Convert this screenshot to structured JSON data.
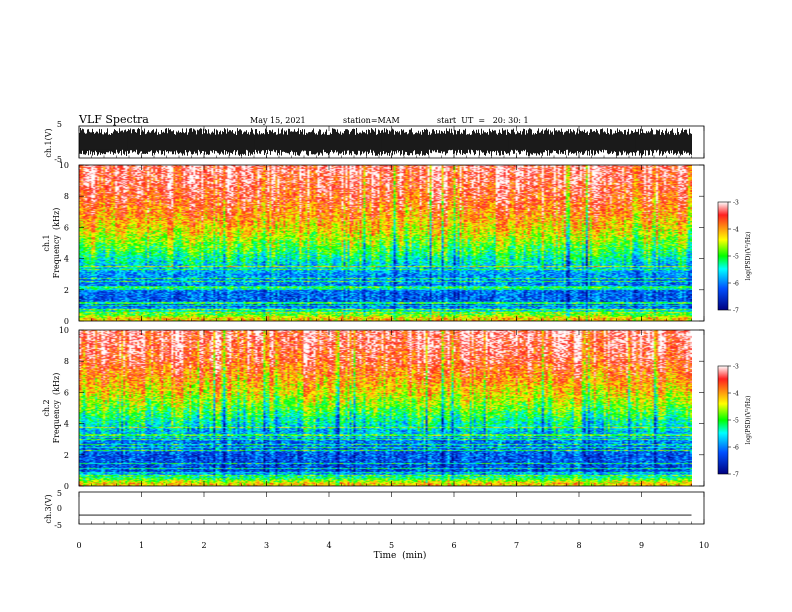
{
  "header": {
    "title": "VLF Spectra",
    "date": "May 15, 2021",
    "station": "station=MAM",
    "start": "start  UT  =   20: 30: 1"
  },
  "panels": {
    "ch1_wave_label": "ch.1(V)",
    "ch1_spec_label": "ch.1",
    "ch2_spec_label": "ch.2",
    "freq_label": "Frequency  (kHz)",
    "ch3_wave_label": "ch.3(V)"
  },
  "colorbar": {
    "label": "log(PSD)(V²/Hz)",
    "ticks": [
      "-3",
      "-4",
      "-5",
      "-6",
      "-7"
    ],
    "colors": [
      "#ffffff",
      "#ff2020",
      "#ffff00",
      "#00ff00",
      "#00ffff",
      "#0050ff",
      "#000080"
    ]
  },
  "chart_data": [
    {
      "type": "line",
      "name": "ch1_waveform",
      "ylabel": "ch.1(V)",
      "ylim": [
        -5,
        5
      ],
      "yticks": [
        "5",
        "-5"
      ],
      "xlim": [
        0,
        10
      ],
      "description_level": "dense noise spanning roughly -5 to 5 V"
    },
    {
      "type": "heatmap",
      "name": "ch1_spectrogram",
      "ylabel": "Frequency  (kHz)",
      "ylim": [
        0,
        10
      ],
      "yticks": [
        "0",
        "2",
        "4",
        "6",
        "8",
        "10"
      ],
      "xlim": [
        0,
        9.8
      ],
      "colorbar_range": [
        -7,
        -3
      ],
      "log_psd_by_freq": [
        {
          "freq_khz": 0.2,
          "log_psd": -4.2
        },
        {
          "freq_khz": 1,
          "log_psd": -6.2
        },
        {
          "freq_khz": 2,
          "log_psd": -6.1
        },
        {
          "freq_khz": 3,
          "log_psd": -5.9
        },
        {
          "freq_khz": 4,
          "log_psd": -5.3
        },
        {
          "freq_khz": 5,
          "log_psd": -4.7
        },
        {
          "freq_khz": 6,
          "log_psd": -4.2
        },
        {
          "freq_khz": 7,
          "log_psd": -3.8
        },
        {
          "freq_khz": 8,
          "log_psd": -3.5
        },
        {
          "freq_khz": 9,
          "log_psd": -3.3
        },
        {
          "freq_khz": 10,
          "log_psd": -3.2
        }
      ]
    },
    {
      "type": "heatmap",
      "name": "ch2_spectrogram",
      "ylabel": "Frequency  (kHz)",
      "ylim": [
        0,
        10
      ],
      "yticks": [
        "0",
        "2",
        "4",
        "6",
        "8",
        "10"
      ],
      "xlim": [
        0,
        9.8
      ],
      "colorbar_range": [
        -7,
        -3
      ],
      "log_psd_by_freq": [
        {
          "freq_khz": 0.2,
          "log_psd": -4.2
        },
        {
          "freq_khz": 1,
          "log_psd": -6.3
        },
        {
          "freq_khz": 2,
          "log_psd": -6.2
        },
        {
          "freq_khz": 3,
          "log_psd": -6.0
        },
        {
          "freq_khz": 4,
          "log_psd": -5.4
        },
        {
          "freq_khz": 5,
          "log_psd": -4.8
        },
        {
          "freq_khz": 6,
          "log_psd": -4.3
        },
        {
          "freq_khz": 7,
          "log_psd": -3.9
        },
        {
          "freq_khz": 8,
          "log_psd": -3.5
        },
        {
          "freq_khz": 9,
          "log_psd": -3.3
        },
        {
          "freq_khz": 10,
          "log_psd": -3.2
        }
      ]
    },
    {
      "type": "line",
      "name": "ch3_waveform",
      "ylabel": "ch.3(V)",
      "ylim": [
        -5,
        5
      ],
      "yticks": [
        "5",
        "0",
        "-5"
      ],
      "xlim": [
        0,
        9.8
      ],
      "y_constant": -2.2
    }
  ],
  "xaxis": {
    "label": "Time  (min)",
    "ticks": [
      "0",
      "1",
      "2",
      "3",
      "4",
      "5",
      "6",
      "7",
      "8",
      "9",
      "10"
    ],
    "range": [
      0,
      10
    ]
  }
}
